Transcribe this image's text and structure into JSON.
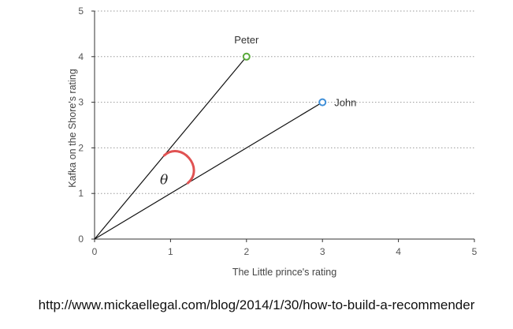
{
  "chart_data": {
    "type": "scatter",
    "xlabel": "The Little prince's rating",
    "ylabel": "Kafka on the Shore's rating",
    "xlim": [
      0,
      5
    ],
    "ylim": [
      0,
      5
    ],
    "x_ticks": [
      0,
      1,
      2,
      3,
      4,
      5
    ],
    "y_ticks": [
      0,
      1,
      2,
      3,
      4,
      5
    ],
    "grid": "horizontal dotted",
    "points": [
      {
        "label": "Peter",
        "x": 2,
        "y": 4,
        "color": "#5aaa3c"
      },
      {
        "label": "John",
        "x": 3,
        "y": 3,
        "color": "#3f8fd8"
      }
    ],
    "vectors_from_origin": true,
    "angle_annotation": {
      "symbol": "θ",
      "color": "#e05252"
    }
  },
  "source_url": "http://www.mickaellegal.com/blog/2014/1/30/how-to-build-a-recommender"
}
